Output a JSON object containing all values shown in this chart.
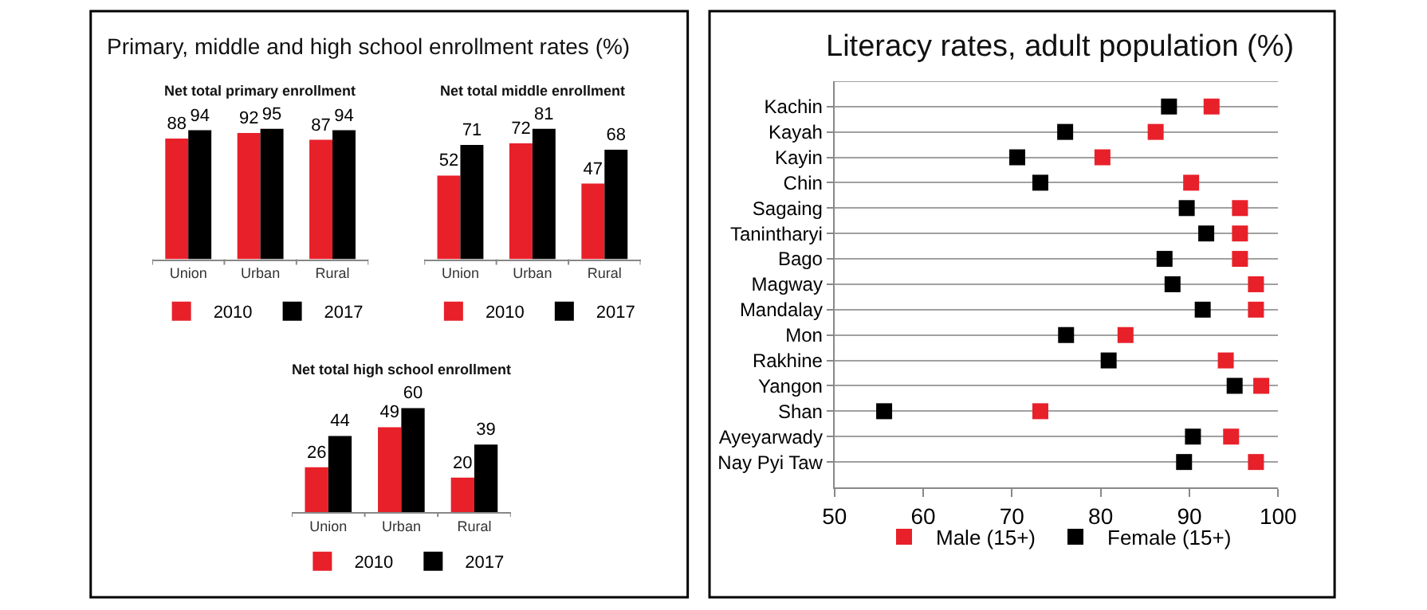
{
  "chart_data": [
    {
      "type": "bar",
      "title": "Primary, middle and high school enrollment rates (%)",
      "subtitle": "Net total primary enrollment",
      "categories": [
        "Union",
        "Urban",
        "Rural"
      ],
      "series": [
        {
          "name": "2010",
          "color": "#e8202a",
          "values": [
            88,
            92,
            87
          ]
        },
        {
          "name": "2017",
          "color": "#000000",
          "values": [
            94,
            95,
            94
          ]
        }
      ],
      "data_labels": true,
      "legend": "bottom"
    },
    {
      "type": "bar",
      "subtitle": "Net total middle enrollment",
      "categories": [
        "Union",
        "Urban",
        "Rural"
      ],
      "series": [
        {
          "name": "2010",
          "color": "#e8202a",
          "values": [
            52,
            72,
            47
          ]
        },
        {
          "name": "2017",
          "color": "#000000",
          "values": [
            71,
            81,
            68
          ]
        }
      ],
      "data_labels": true,
      "legend": "bottom"
    },
    {
      "type": "bar",
      "subtitle": "Net total high school enrollment",
      "categories": [
        "Union",
        "Urban",
        "Rural"
      ],
      "series": [
        {
          "name": "2010",
          "color": "#e8202a",
          "values": [
            26,
            49,
            20
          ]
        },
        {
          "name": "2017",
          "color": "#000000",
          "values": [
            44,
            60,
            39
          ]
        }
      ],
      "data_labels": true,
      "legend": "bottom"
    },
    {
      "type": "scatter",
      "title": "Literacy rates, adult population (%)",
      "orientation": "horizontal",
      "categories": [
        "Kachin",
        "Kayah",
        "Kayin",
        "Chin",
        "Sagaing",
        "Tanintharyi",
        "Bago",
        "Magway",
        "Mandalay",
        "Mon",
        "Rakhine",
        "Yangon",
        "Shan",
        "Ayeyarwady",
        "Nay Pyi Taw"
      ],
      "series": [
        {
          "name": "Male (15+)",
          "color": "#e8202a",
          "values": [
            92.5,
            86.2,
            80.2,
            90.2,
            95.7,
            95.7,
            95.7,
            97.5,
            97.5,
            82.8,
            94.1,
            98.1,
            73.2,
            94.7,
            97.5
          ]
        },
        {
          "name": "Female (15+)",
          "color": "#000000",
          "values": [
            87.7,
            76.0,
            70.6,
            73.2,
            89.7,
            91.9,
            87.2,
            88.1,
            91.5,
            76.1,
            80.9,
            95.1,
            55.6,
            90.4,
            89.4
          ]
        }
      ],
      "xlim": [
        50,
        100
      ],
      "xticks": [
        50,
        60,
        70,
        80,
        90,
        100
      ],
      "grid": "y",
      "marker": "square",
      "legend": "bottom"
    }
  ]
}
